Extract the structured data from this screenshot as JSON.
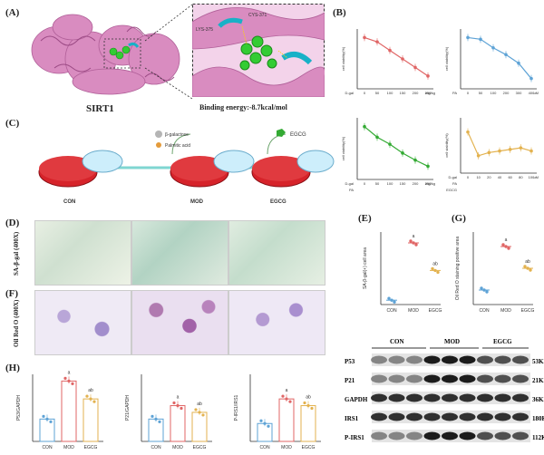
{
  "panels": {
    "A": "(A)",
    "B": "(B)",
    "C": "(C)",
    "D": "(D)",
    "E": "(E)",
    "F": "(F)",
    "G": "(G)",
    "H": "(H)"
  },
  "panelA": {
    "protein_name": "SIRT1",
    "binding_energy": "Binding energy:-8.7kcal/mol",
    "residues": [
      "CYS-371",
      "LYS-375"
    ]
  },
  "panelC": {
    "additives": [
      "β-galactose",
      "Palmitic acid",
      "EGCG"
    ],
    "groups": [
      "CON",
      "MOD",
      "EGCG"
    ]
  },
  "panelD": {
    "row_label": "SA-β-gal (400X)"
  },
  "panelF": {
    "row_label": "Oil Red O (400X)"
  },
  "western": {
    "groups": [
      "CON",
      "MOD",
      "EGCG"
    ],
    "proteins": [
      "P53",
      "P21",
      "GAPDH",
      "IRS1",
      "P-IRS1"
    ],
    "sizes": [
      "53KD",
      "21KD",
      "36KD",
      "180KD",
      "112KD"
    ]
  },
  "colors": {
    "con": "#5ea3d6",
    "mod": "#e06666",
    "egcg": "#e3b24f",
    "sirt": "#d98cc0",
    "ligand": "#33cc33",
    "cyan": "#18b1c7",
    "dish": "#d6232a"
  },
  "chart_data": [
    {
      "id": "B1",
      "type": "line",
      "ylabel": "cell viability(%)",
      "x": [
        "0",
        "50",
        "100",
        "150",
        "200",
        "250"
      ],
      "values": [
        100,
        95,
        85,
        75,
        65,
        55
      ],
      "color": "#e06666",
      "row_labels": [
        "D-gal"
      ],
      "unit": "mg/kg"
    },
    {
      "id": "B2",
      "type": "line",
      "ylabel": "cell viability(%)",
      "x": [
        "0",
        "50",
        "100",
        "200",
        "300",
        "400"
      ],
      "values": [
        100,
        98,
        88,
        80,
        70,
        52
      ],
      "color": "#5ea3d6",
      "row_labels": [
        "PA"
      ],
      "unit": "uM"
    },
    {
      "id": "B3",
      "type": "line",
      "ylabel": "cell viability(%)",
      "x": [
        "0",
        "50",
        "100",
        "150",
        "200",
        "250"
      ],
      "values": [
        100,
        88,
        80,
        70,
        62,
        55
      ],
      "color": "#33aa33",
      "row_labels": [
        "D-gal",
        "PA"
      ],
      "unit": "mg/kg"
    },
    {
      "id": "B4",
      "type": "line",
      "ylabel": "cell viability(%)",
      "x": [
        "0",
        "10",
        "20",
        "40",
        "60",
        "80",
        "100"
      ],
      "values": [
        92,
        62,
        66,
        68,
        70,
        72,
        68
      ],
      "color": "#e3b24f",
      "row_labels": [
        "D-gal",
        "PA",
        "EGCG"
      ],
      "unit": "uM"
    },
    {
      "id": "E",
      "type": "scatter",
      "ylabel": "SA-β-gal(+) cell area",
      "categories": [
        "CON",
        "MOD",
        "EGCG"
      ],
      "values": [
        6,
        85,
        47
      ],
      "letters": [
        "",
        "a",
        "ab"
      ]
    },
    {
      "id": "G",
      "type": "scatter",
      "ylabel": "Oil Red O staining positive area",
      "categories": [
        "CON",
        "MOD",
        "EGCG"
      ],
      "values": [
        20,
        80,
        50
      ],
      "letters": [
        "",
        "a",
        "ab"
      ]
    },
    {
      "id": "H1",
      "type": "bar",
      "ylabel": "P53/GAPDH",
      "categories": [
        "CON",
        "MOD",
        "EGCG"
      ],
      "values": [
        1.0,
        2.7,
        1.9
      ],
      "letters": [
        "",
        "a",
        "ab"
      ]
    },
    {
      "id": "H2",
      "type": "bar",
      "ylabel": "P21/GAPDH",
      "categories": [
        "CON",
        "MOD",
        "EGCG"
      ],
      "values": [
        1.0,
        1.6,
        1.3
      ],
      "letters": [
        "",
        "a",
        "ab"
      ]
    },
    {
      "id": "H3",
      "type": "bar",
      "ylabel": "P-IRS1/IRS1",
      "categories": [
        "CON",
        "MOD",
        "EGCG"
      ],
      "values": [
        0.8,
        1.9,
        1.6
      ],
      "letters": [
        "",
        "a",
        "ab"
      ]
    }
  ]
}
